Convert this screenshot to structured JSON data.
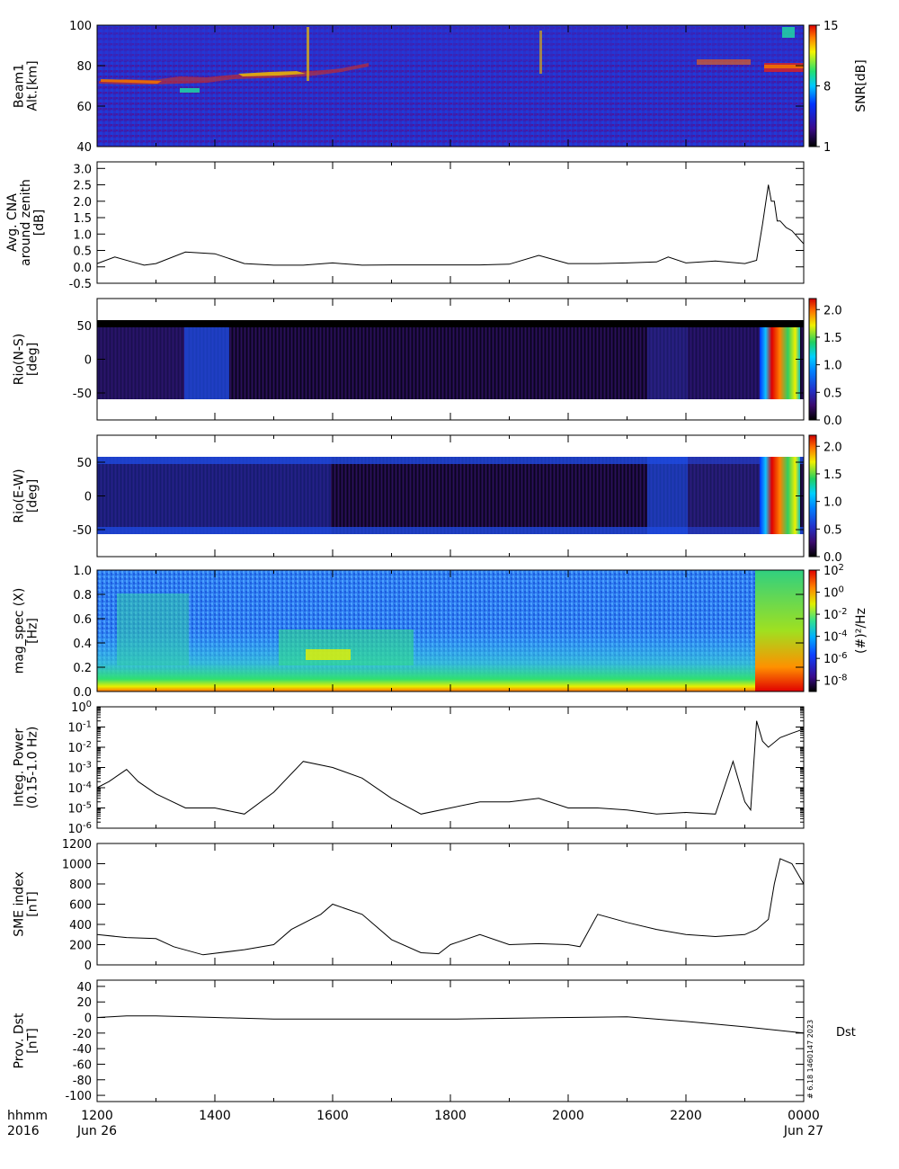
{
  "colorbars": [
    {
      "ticks": [
        "15",
        "8",
        "1"
      ],
      "label": "SNR[dB]"
    },
    null,
    {
      "ticks": [
        "2.0",
        "1.5",
        "1.0",
        "0.5",
        "0.0"
      ],
      "label": ""
    },
    {
      "ticks": [
        "2.0",
        "1.5",
        "1.0",
        "0.5",
        "0.0"
      ],
      "label": ""
    },
    {
      "ticks": [
        "10^2",
        "10^0",
        "10^-2",
        "10^-4",
        "10^-6",
        "10^-8"
      ],
      "label": "(#)²/Hz"
    },
    null,
    null,
    null
  ],
  "footer": {
    "row1_label": "hhmm",
    "row2_label": "2016",
    "x_ticks": [
      "1200",
      "1400",
      "1600",
      "1800",
      "2000",
      "2200",
      "0000"
    ],
    "start_date": "Jun 26",
    "end_date": "Jun 27",
    "side_stamp": "# 6.18 1460147 2023",
    "dst_label": "Dst"
  },
  "chart_data": [
    {
      "type": "heatmap",
      "ylabel": [
        "Beam1",
        "Alt.[km]"
      ],
      "yticks": [
        "100",
        "80",
        "60",
        "40"
      ],
      "ylim": [
        40,
        100
      ],
      "colorbar": {
        "label": "SNR[dB]",
        "range": [
          1,
          15
        ],
        "ticks": [
          1,
          8,
          15
        ]
      },
      "features": [
        {
          "desc": "enhanced SNR layer",
          "x_hhmm": [
            "1200",
            "1400"
          ],
          "alt_km": [
            72,
            76
          ]
        },
        {
          "desc": "enhanced SNR layer",
          "x_hhmm": [
            "1500",
            "1600"
          ],
          "alt_km": [
            74,
            78
          ]
        },
        {
          "desc": "enhanced SNR layer",
          "x_hhmm": [
            "2330",
            "0000"
          ],
          "alt_km": [
            76,
            82
          ]
        }
      ]
    },
    {
      "type": "line",
      "ylabel": [
        "Avg. CNA",
        "around zenith",
        "[dB]"
      ],
      "yticks": [
        "3.0",
        "2.5",
        "2.0",
        "1.5",
        "1.0",
        "0.5",
        "0.0",
        "-0.5"
      ],
      "ylim": [
        -0.5,
        3.2
      ],
      "x_hours": [
        0,
        0.3,
        0.6,
        0.8,
        1.0,
        1.5,
        2.0,
        2.5,
        3.0,
        3.5,
        4.0,
        4.5,
        5.0,
        5.5,
        6.0,
        6.5,
        7.0,
        7.5,
        8.0,
        8.5,
        9.0,
        9.5,
        9.7,
        10.0,
        10.5,
        11.0,
        11.2,
        11.3,
        11.4,
        11.45,
        11.5,
        11.55,
        11.6,
        11.7,
        11.8,
        11.9,
        12.0
      ],
      "values": [
        0.1,
        0.3,
        0.15,
        0.05,
        0.1,
        0.45,
        0.4,
        0.1,
        0.05,
        0.05,
        0.12,
        0.05,
        0.06,
        0.06,
        0.06,
        0.06,
        0.08,
        0.35,
        0.1,
        0.1,
        0.12,
        0.15,
        0.3,
        0.12,
        0.18,
        0.1,
        0.2,
        1.3,
        2.5,
        2.0,
        2.0,
        1.4,
        1.4,
        1.2,
        1.1,
        0.9,
        0.7
      ]
    },
    {
      "type": "heatmap",
      "ylabel": [
        "Rio(N-S)",
        "[deg]"
      ],
      "yticks": [
        "50",
        "0",
        "-50"
      ],
      "ylim": [
        -90,
        90
      ],
      "colorbar": {
        "range": [
          0,
          2.2
        ],
        "ticks": [
          0.0,
          0.5,
          1.0,
          1.5,
          2.0
        ]
      }
    },
    {
      "type": "heatmap",
      "ylabel": [
        "Rio(E-W)",
        "[deg]"
      ],
      "yticks": [
        "50",
        "0",
        "-50"
      ],
      "ylim": [
        -90,
        90
      ],
      "colorbar": {
        "range": [
          0,
          2.2
        ],
        "ticks": [
          0.0,
          0.5,
          1.0,
          1.5,
          2.0
        ]
      }
    },
    {
      "type": "heatmap",
      "ylabel": [
        "mag_spec (X)",
        "[Hz]"
      ],
      "yticks": [
        "1.0",
        "0.8",
        "0.6",
        "0.4",
        "0.2",
        "0.0"
      ],
      "ylim": [
        0,
        1.0
      ],
      "colorbar": {
        "label": "(#)²/Hz",
        "log": true,
        "range": [
          -9,
          2
        ],
        "ticks": [
          2,
          0,
          -2,
          -4,
          -6,
          -8
        ]
      }
    },
    {
      "type": "line",
      "ylabel": [
        "Integ. Power",
        "(0.15-1.0 Hz)"
      ],
      "log": true,
      "yticks": [
        "10^0",
        "10^-1",
        "10^-2",
        "10^-3",
        "10^-4",
        "10^-5",
        "10^-6"
      ],
      "ylim": [
        1e-06,
        1
      ],
      "x_hours": [
        0,
        0.2,
        0.5,
        0.7,
        1.0,
        1.5,
        2.0,
        2.5,
        3.0,
        3.5,
        4.0,
        4.5,
        5.0,
        5.5,
        6.0,
        6.5,
        7.0,
        7.5,
        8.0,
        8.5,
        9.0,
        9.5,
        10.0,
        10.5,
        10.8,
        11.0,
        11.1,
        11.2,
        11.3,
        11.4,
        11.6,
        11.8,
        12.0
      ],
      "values": [
        0.0001,
        0.0002,
        0.0008,
        0.0002,
        5e-05,
        1e-05,
        1e-05,
        5e-06,
        6e-05,
        0.002,
        0.001,
        0.0003,
        3e-05,
        5e-06,
        1e-05,
        2e-05,
        2e-05,
        3e-05,
        1e-05,
        1e-05,
        8e-06,
        5e-06,
        6e-06,
        5e-06,
        0.002,
        2e-05,
        8e-06,
        0.2,
        0.02,
        0.01,
        0.03,
        0.05,
        0.08
      ]
    },
    {
      "type": "line",
      "ylabel": [
        "SME index",
        "[nT]"
      ],
      "yticks": [
        "1200",
        "1000",
        "800",
        "600",
        "400",
        "200",
        "0"
      ],
      "ylim": [
        0,
        1200
      ],
      "x_hours": [
        0,
        0.5,
        1.0,
        1.3,
        1.8,
        2.5,
        3.0,
        3.3,
        3.8,
        4.0,
        4.5,
        5.0,
        5.5,
        5.8,
        6.0,
        6.5,
        7.0,
        7.5,
        8.0,
        8.2,
        8.5,
        9.0,
        9.5,
        10.0,
        10.5,
        11.0,
        11.2,
        11.4,
        11.5,
        11.6,
        11.8,
        12.0
      ],
      "values": [
        300,
        270,
        260,
        180,
        100,
        150,
        200,
        350,
        500,
        600,
        500,
        250,
        120,
        110,
        200,
        300,
        200,
        210,
        200,
        180,
        500,
        420,
        350,
        300,
        280,
        300,
        350,
        450,
        800,
        1050,
        1000,
        800
      ]
    },
    {
      "type": "line",
      "ylabel": [
        "Prov. Dst",
        "[nT]"
      ],
      "yticks": [
        "40",
        "20",
        "0",
        "-20",
        "-40",
        "-60",
        "-80",
        "-100"
      ],
      "ylim": [
        -108,
        48
      ],
      "x_hours": [
        0,
        0.5,
        1.0,
        2.0,
        3.0,
        4.0,
        5.0,
        6.0,
        7.0,
        8.0,
        9.0,
        10.0,
        11.0,
        12.0
      ],
      "values": [
        0,
        2,
        2,
        0,
        -2,
        -2,
        -2,
        -2,
        -1,
        0,
        1,
        -5,
        -12,
        -20
      ],
      "series_label": "Dst"
    }
  ]
}
